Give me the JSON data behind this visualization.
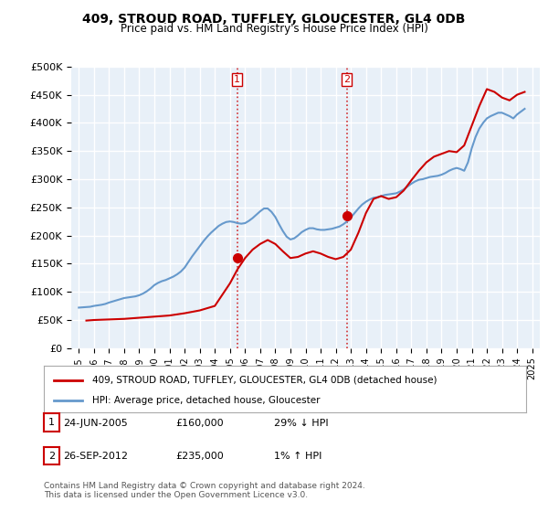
{
  "title": "409, STROUD ROAD, TUFFLEY, GLOUCESTER, GL4 0DB",
  "subtitle": "Price paid vs. HM Land Registry's House Price Index (HPI)",
  "legend_line1": "409, STROUD ROAD, TUFFLEY, GLOUCESTER, GL4 0DB (detached house)",
  "legend_line2": "HPI: Average price, detached house, Gloucester",
  "annotation_note": "Contains HM Land Registry data © Crown copyright and database right 2024.\nThis data is licensed under the Open Government Licence v3.0.",
  "transactions": [
    {
      "label": "1",
      "date": "24-JUN-2005",
      "price": 160000,
      "pct": "29% ↓ HPI",
      "x": 2005.48
    },
    {
      "label": "2",
      "date": "26-SEP-2012",
      "price": 235000,
      "pct": "1% ↑ HPI",
      "x": 2012.73
    }
  ],
  "ylim": [
    0,
    500000
  ],
  "yticks": [
    0,
    50000,
    100000,
    150000,
    200000,
    250000,
    300000,
    350000,
    400000,
    450000,
    500000
  ],
  "xlim_start": 1994.5,
  "xlim_end": 2025.5,
  "background_color": "#ffffff",
  "plot_bg_color": "#e8f0f8",
  "grid_color": "#ffffff",
  "red_line_color": "#cc0000",
  "blue_line_color": "#6699cc",
  "marker_color": "#cc0000",
  "vline_color": "#cc0000",
  "hpi_x": [
    1995,
    1995.25,
    1995.5,
    1995.75,
    1996,
    1996.25,
    1996.5,
    1996.75,
    1997,
    1997.25,
    1997.5,
    1997.75,
    1998,
    1998.25,
    1998.5,
    1998.75,
    1999,
    1999.25,
    1999.5,
    1999.75,
    2000,
    2000.25,
    2000.5,
    2000.75,
    2001,
    2001.25,
    2001.5,
    2001.75,
    2002,
    2002.25,
    2002.5,
    2002.75,
    2003,
    2003.25,
    2003.5,
    2003.75,
    2004,
    2004.25,
    2004.5,
    2004.75,
    2005,
    2005.25,
    2005.5,
    2005.75,
    2006,
    2006.25,
    2006.5,
    2006.75,
    2007,
    2007.25,
    2007.5,
    2007.75,
    2008,
    2008.25,
    2008.5,
    2008.75,
    2009,
    2009.25,
    2009.5,
    2009.75,
    2010,
    2010.25,
    2010.5,
    2010.75,
    2011,
    2011.25,
    2011.5,
    2011.75,
    2012,
    2012.25,
    2012.5,
    2012.75,
    2013,
    2013.25,
    2013.5,
    2013.75,
    2014,
    2014.25,
    2014.5,
    2014.75,
    2015,
    2015.25,
    2015.5,
    2015.75,
    2016,
    2016.25,
    2016.5,
    2016.75,
    2017,
    2017.25,
    2017.5,
    2017.75,
    2018,
    2018.25,
    2018.5,
    2018.75,
    2019,
    2019.25,
    2019.5,
    2019.75,
    2020,
    2020.25,
    2020.5,
    2020.75,
    2021,
    2021.25,
    2021.5,
    2021.75,
    2022,
    2022.25,
    2022.5,
    2022.75,
    2023,
    2023.25,
    2023.5,
    2023.75,
    2024,
    2024.25,
    2024.5
  ],
  "hpi_y": [
    72000,
    72500,
    73000,
    73500,
    75000,
    76000,
    77000,
    78500,
    81000,
    83000,
    85000,
    87000,
    89000,
    90000,
    91000,
    92000,
    94000,
    97000,
    101000,
    106000,
    112000,
    116000,
    119000,
    121000,
    124000,
    127000,
    131000,
    136000,
    143000,
    153000,
    163000,
    172000,
    181000,
    190000,
    198000,
    205000,
    211000,
    217000,
    221000,
    224000,
    225000,
    224000,
    222000,
    221000,
    222000,
    226000,
    231000,
    237000,
    243000,
    248000,
    248000,
    242000,
    233000,
    220000,
    208000,
    198000,
    193000,
    195000,
    200000,
    206000,
    210000,
    213000,
    213000,
    211000,
    210000,
    210000,
    211000,
    212000,
    214000,
    216000,
    220000,
    225000,
    232000,
    240000,
    248000,
    255000,
    260000,
    264000,
    267000,
    268000,
    270000,
    272000,
    273000,
    274000,
    275000,
    278000,
    282000,
    287000,
    292000,
    296000,
    299000,
    300000,
    302000,
    304000,
    305000,
    306000,
    308000,
    311000,
    315000,
    318000,
    320000,
    318000,
    315000,
    330000,
    355000,
    375000,
    390000,
    400000,
    408000,
    412000,
    415000,
    418000,
    418000,
    415000,
    412000,
    408000,
    415000,
    420000,
    425000
  ],
  "price_x": [
    1995.5,
    1996.0,
    1997.0,
    1998.0,
    1999.0,
    2000.0,
    2001.0,
    2002.0,
    2003.0,
    2004.0,
    2004.5,
    2005.0,
    2005.5,
    2006.0,
    2006.5,
    2007.0,
    2007.5,
    2008.0,
    2008.5,
    2009.0,
    2009.5,
    2010.0,
    2010.5,
    2011.0,
    2011.5,
    2012.0,
    2012.5,
    2013.0,
    2013.5,
    2014.0,
    2014.5,
    2015.0,
    2015.5,
    2016.0,
    2016.5,
    2017.0,
    2017.5,
    2018.0,
    2018.5,
    2019.0,
    2019.5,
    2020.0,
    2020.5,
    2021.0,
    2021.5,
    2022.0,
    2022.5,
    2023.0,
    2023.5,
    2024.0,
    2024.5
  ],
  "price_y": [
    49000,
    50000,
    51000,
    52000,
    54000,
    56000,
    58000,
    62000,
    67000,
    75000,
    95000,
    115000,
    140000,
    160000,
    175000,
    185000,
    192000,
    185000,
    172000,
    160000,
    162000,
    168000,
    172000,
    168000,
    162000,
    158000,
    162000,
    175000,
    205000,
    240000,
    265000,
    270000,
    265000,
    268000,
    280000,
    298000,
    315000,
    330000,
    340000,
    345000,
    350000,
    348000,
    360000,
    395000,
    430000,
    460000,
    455000,
    445000,
    440000,
    450000,
    455000
  ]
}
